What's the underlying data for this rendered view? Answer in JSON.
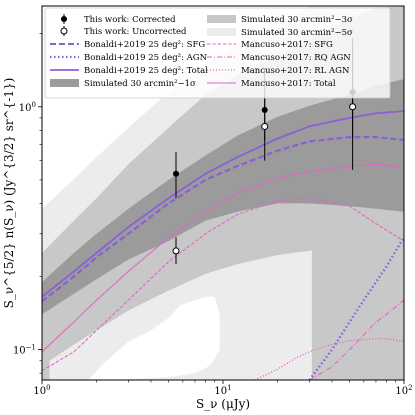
{
  "chart_data": {
    "type": "line",
    "xscale": "log",
    "yscale": "log",
    "xlim": [
      1,
      100
    ],
    "ylim": [
      0.075,
      2.6
    ],
    "xlabel": "S_ν (μJy)",
    "ylabel": "S_ν^{5/2} n(S_ν) (Jy^{3/2} sr^{-1})",
    "x_ticks": [
      {
        "value": 1,
        "base": "10",
        "exp": "0"
      },
      {
        "value": 10,
        "base": "10",
        "exp": "1"
      },
      {
        "value": 100,
        "base": "10",
        "exp": "2"
      }
    ],
    "y_ticks": [
      {
        "value": 0.1,
        "base": "10",
        "exp": "−1"
      },
      {
        "value": 1,
        "base": "10",
        "exp": "0"
      }
    ],
    "grid": false,
    "legend_position": "top",
    "legend": {
      "corrected": "This work: Corrected",
      "uncorrected": "This work: Uncorrected",
      "bon_sfg": "Bonaldi+2019 25 deg²: SFG",
      "bon_agn": "Bonaldi+2019 25 deg²: AGN",
      "bon_total": "Bonaldi+2019 25 deg²: Total",
      "sim1": "Simulated 30 arcmin²−1σ",
      "sim3": "Simulated 30 arcmin²−3σ",
      "sim5": "Simulated 30 arcmin²−5σ",
      "man_sfg": "Mancuso+2017: SFG",
      "man_rq": "Mancuso+2017: RQ AGN",
      "man_rl": "Mancuso+2017: RL AGN",
      "man_total": "Mancuso+2017: Total"
    },
    "colors": {
      "purple": "#8b5fd6",
      "pink": "#e066c4",
      "sim1": "#9b9b9b",
      "sim3": "#c8c8c8",
      "sim5": "#ececec"
    },
    "points": {
      "corrected": [
        {
          "x": 5.5,
          "y": 0.53,
          "ylo": 0.42,
          "yhi": 0.65
        },
        {
          "x": 17,
          "y": 0.97,
          "ylo": 0.73,
          "yhi": 1.42
        },
        {
          "x": 52,
          "y": 1.15,
          "ylo": 0.75,
          "yhi": 1.92
        }
      ],
      "uncorrected": [
        {
          "x": 5.5,
          "y": 0.255,
          "ylo": 0.225,
          "yhi": 0.29
        },
        {
          "x": 17,
          "y": 0.83,
          "ylo": 0.6,
          "yhi": 1.15
        },
        {
          "x": 52,
          "y": 1.0,
          "ylo": 0.55,
          "yhi": 1.75
        }
      ]
    },
    "bands": {
      "sim5": {
        "x": [
          1,
          1.4,
          2,
          3,
          5,
          8,
          12,
          20,
          30,
          50,
          70,
          100
        ],
        "upper": [
          0.38,
          0.48,
          0.62,
          0.82,
          1.15,
          1.5,
          1.8,
          2.1,
          2.6,
          2.6,
          2.6,
          2.6
        ],
        "lower": [
          0.075,
          0.075,
          0.075,
          0.075,
          0.075,
          0.075,
          0.075,
          0.075,
          0.075,
          0.075,
          0.075,
          0.075
        ]
      },
      "sim3": {
        "x": [
          1,
          1.5,
          2,
          3,
          5,
          8,
          12,
          20,
          30,
          50,
          70,
          100
        ],
        "upper": [
          0.25,
          0.34,
          0.42,
          0.58,
          0.82,
          1.12,
          1.35,
          1.62,
          1.9,
          2.3,
          2.55,
          2.6
        ],
        "lower": [
          0.075,
          0.075,
          0.075,
          0.075,
          0.075,
          0.075,
          0.075,
          0.075,
          0.075,
          0.075,
          0.075,
          0.075
        ]
      },
      "sim1": {
        "x": [
          1,
          1.5,
          2,
          3,
          5,
          8,
          12,
          20,
          30,
          50,
          70,
          100
        ],
        "upper": [
          0.19,
          0.25,
          0.3,
          0.38,
          0.5,
          0.63,
          0.76,
          0.91,
          1.01,
          1.12,
          1.22,
          1.3
        ],
        "lower": [
          0.14,
          0.17,
          0.195,
          0.235,
          0.28,
          0.34,
          0.37,
          0.4,
          0.4,
          0.39,
          0.38,
          0.37
        ]
      }
    },
    "holes": {
      "sim3_hole": {
        "x": [
          1.1,
          1.5,
          2,
          3,
          5,
          8,
          12,
          20,
          30,
          50,
          70,
          98
        ],
        "upper": [
          0.09,
          0.105,
          0.12,
          0.145,
          0.175,
          0.205,
          0.225,
          0.245,
          0.255,
          0.26,
          0.265,
          0.27
        ],
        "lower": [
          0.075,
          0.075,
          0.075,
          0.075,
          0.075,
          0.075,
          0.075,
          0.075,
          0.075,
          0.075,
          0.075,
          0.075
        ]
      },
      "sim5_hole": {
        "x": [
          1.8,
          2.2,
          3,
          4,
          5,
          5.8,
          7,
          8,
          9,
          9.6,
          9.6,
          8.5,
          7,
          5,
          3.5,
          2.5,
          2,
          1.8
        ],
        "y": [
          0.075,
          0.088,
          0.108,
          0.12,
          0.135,
          0.152,
          0.16,
          0.165,
          0.165,
          0.14,
          0.1,
          0.086,
          0.08,
          0.077,
          0.076,
          0.075,
          0.075,
          0.075
        ]
      },
      "sim5_hole2": {
        "x": [
          31,
          31,
          40,
          55,
          70,
          85,
          100,
          100,
          31
        ],
        "y": [
          0.075,
          0.26,
          0.28,
          0.29,
          0.3,
          0.31,
          0.32,
          0.075,
          0.075
        ]
      }
    },
    "series": [
      {
        "key": "bon_sfg",
        "style": "dashed",
        "color_key": "purple",
        "width": 2.2,
        "x": [
          1,
          1.5,
          2,
          3,
          5,
          8,
          12,
          20,
          30,
          50,
          70,
          100
        ],
        "y": [
          0.158,
          0.2,
          0.24,
          0.3,
          0.4,
          0.5,
          0.57,
          0.66,
          0.72,
          0.75,
          0.75,
          0.73
        ]
      },
      {
        "key": "bon_agn",
        "style": "dotted",
        "color_key": "purple",
        "width": 2.4,
        "x": [
          30,
          40,
          50,
          60,
          70,
          80,
          90,
          100
        ],
        "y": [
          0.075,
          0.1,
          0.13,
          0.16,
          0.19,
          0.22,
          0.255,
          0.29
        ]
      },
      {
        "key": "bon_total",
        "style": "solid",
        "color_key": "purple",
        "width": 1.8,
        "x": [
          1,
          1.5,
          2,
          3,
          5,
          8,
          12,
          20,
          30,
          50,
          70,
          100
        ],
        "y": [
          0.165,
          0.21,
          0.25,
          0.32,
          0.42,
          0.53,
          0.62,
          0.74,
          0.83,
          0.9,
          0.94,
          0.96
        ]
      },
      {
        "key": "man_sfg",
        "style": "dashed",
        "color_key": "pink",
        "width": 1.1,
        "x": [
          1,
          1.5,
          2,
          3,
          5,
          8,
          12,
          20,
          30,
          50,
          70,
          100
        ],
        "y": [
          0.082,
          0.098,
          0.12,
          0.16,
          0.23,
          0.3,
          0.36,
          0.41,
          0.42,
          0.39,
          0.33,
          0.28
        ]
      },
      {
        "key": "man_rq",
        "style": "dashdot",
        "color_key": "pink",
        "width": 1.1,
        "x": [
          30,
          40,
          50,
          60,
          70,
          80,
          90,
          100
        ],
        "y": [
          0.075,
          0.085,
          0.1,
          0.115,
          0.13,
          0.14,
          0.15,
          0.16
        ]
      },
      {
        "key": "man_rl",
        "style": "dotted",
        "color_key": "pink",
        "width": 1.4,
        "x": [
          15,
          20,
          25,
          30,
          40,
          50,
          60,
          70,
          80,
          100
        ],
        "y": [
          0.075,
          0.083,
          0.092,
          0.098,
          0.105,
          0.109,
          0.11,
          0.111,
          0.111,
          0.108
        ]
      },
      {
        "key": "man_total",
        "style": "solid",
        "color_key": "pink",
        "width": 1.1,
        "x": [
          1,
          1.5,
          2,
          3,
          5,
          8,
          12,
          20,
          30,
          50,
          70,
          100
        ],
        "y": [
          0.098,
          0.13,
          0.16,
          0.21,
          0.29,
          0.37,
          0.44,
          0.51,
          0.54,
          0.57,
          0.58,
          0.56
        ]
      }
    ]
  }
}
